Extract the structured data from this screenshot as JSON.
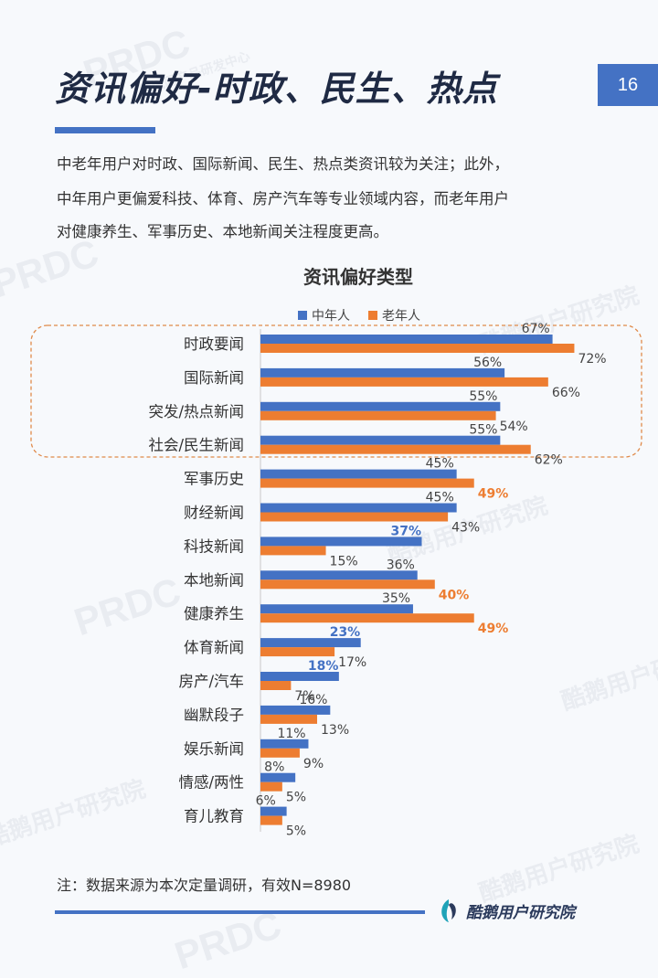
{
  "header": {
    "title": "资讯偏好-时政、民生、热点",
    "page_number": "16"
  },
  "intro": {
    "lines": [
      "中老年用户对时政、国际新闻、民生、热点类资讯较为关注；此外，",
      "中年用户更偏爱科技、体育、房产汽车等专业领域内容，而老年用户",
      "对健康养生、军事历史、本地新闻关注程度更高。"
    ]
  },
  "chart_data": {
    "type": "bar",
    "orientation": "horizontal",
    "title": "资讯偏好类型",
    "legend_position": "top",
    "categories": [
      "时政要闻",
      "国际新闻",
      "突发/热点新闻",
      "社会/民生新闻",
      "军事历史",
      "财经新闻",
      "科技新闻",
      "本地新闻",
      "健康养生",
      "体育新闻",
      "房产/汽车",
      "幽默段子",
      "娱乐新闻",
      "情感/两性",
      "育儿教育"
    ],
    "series": [
      {
        "name": "中年人",
        "color": "#4472c4",
        "values": [
          67,
          56,
          55,
          55,
          45,
          45,
          37,
          36,
          35,
          23,
          18,
          16,
          11,
          8,
          6
        ],
        "labels": [
          "67%",
          "56%",
          "55%",
          "55%",
          "45%",
          "45%",
          "37%",
          "36%",
          "35%",
          "23%",
          "18%",
          "16%",
          "11%",
          "8%",
          "6%"
        ]
      },
      {
        "name": "老年人",
        "color": "#ed7d31",
        "values": [
          72,
          66,
          54,
          62,
          49,
          43,
          15,
          40,
          49,
          17,
          7,
          13,
          9,
          5,
          5
        ],
        "labels": [
          "72%",
          "66%",
          "54%",
          "62%",
          "49%",
          "43%",
          "15%",
          "40%",
          "49%",
          "17%",
          "7%",
          "13%",
          "9%",
          "5%",
          "5%"
        ]
      }
    ],
    "highlighted_labels": {
      "中年人": [
        "科技新闻",
        "体育新闻",
        "房产/汽车"
      ],
      "老年人": [
        "军事历史",
        "本地新闻",
        "健康养生"
      ]
    },
    "highlight_box_categories": [
      "时政要闻",
      "国际新闻",
      "突发/热点新闻",
      "社会/民生新闻"
    ],
    "xlim": [
      0,
      100
    ],
    "grid": false
  },
  "footer": {
    "note": "注：数据来源为本次定量调研，有效N=8980",
    "brand": "酷鹅用户研究院"
  },
  "watermarks": {
    "brand_en": "PRDC",
    "sub": "腾讯网产品研发中心",
    "brand_cn": "酷鹅用户研究院"
  }
}
